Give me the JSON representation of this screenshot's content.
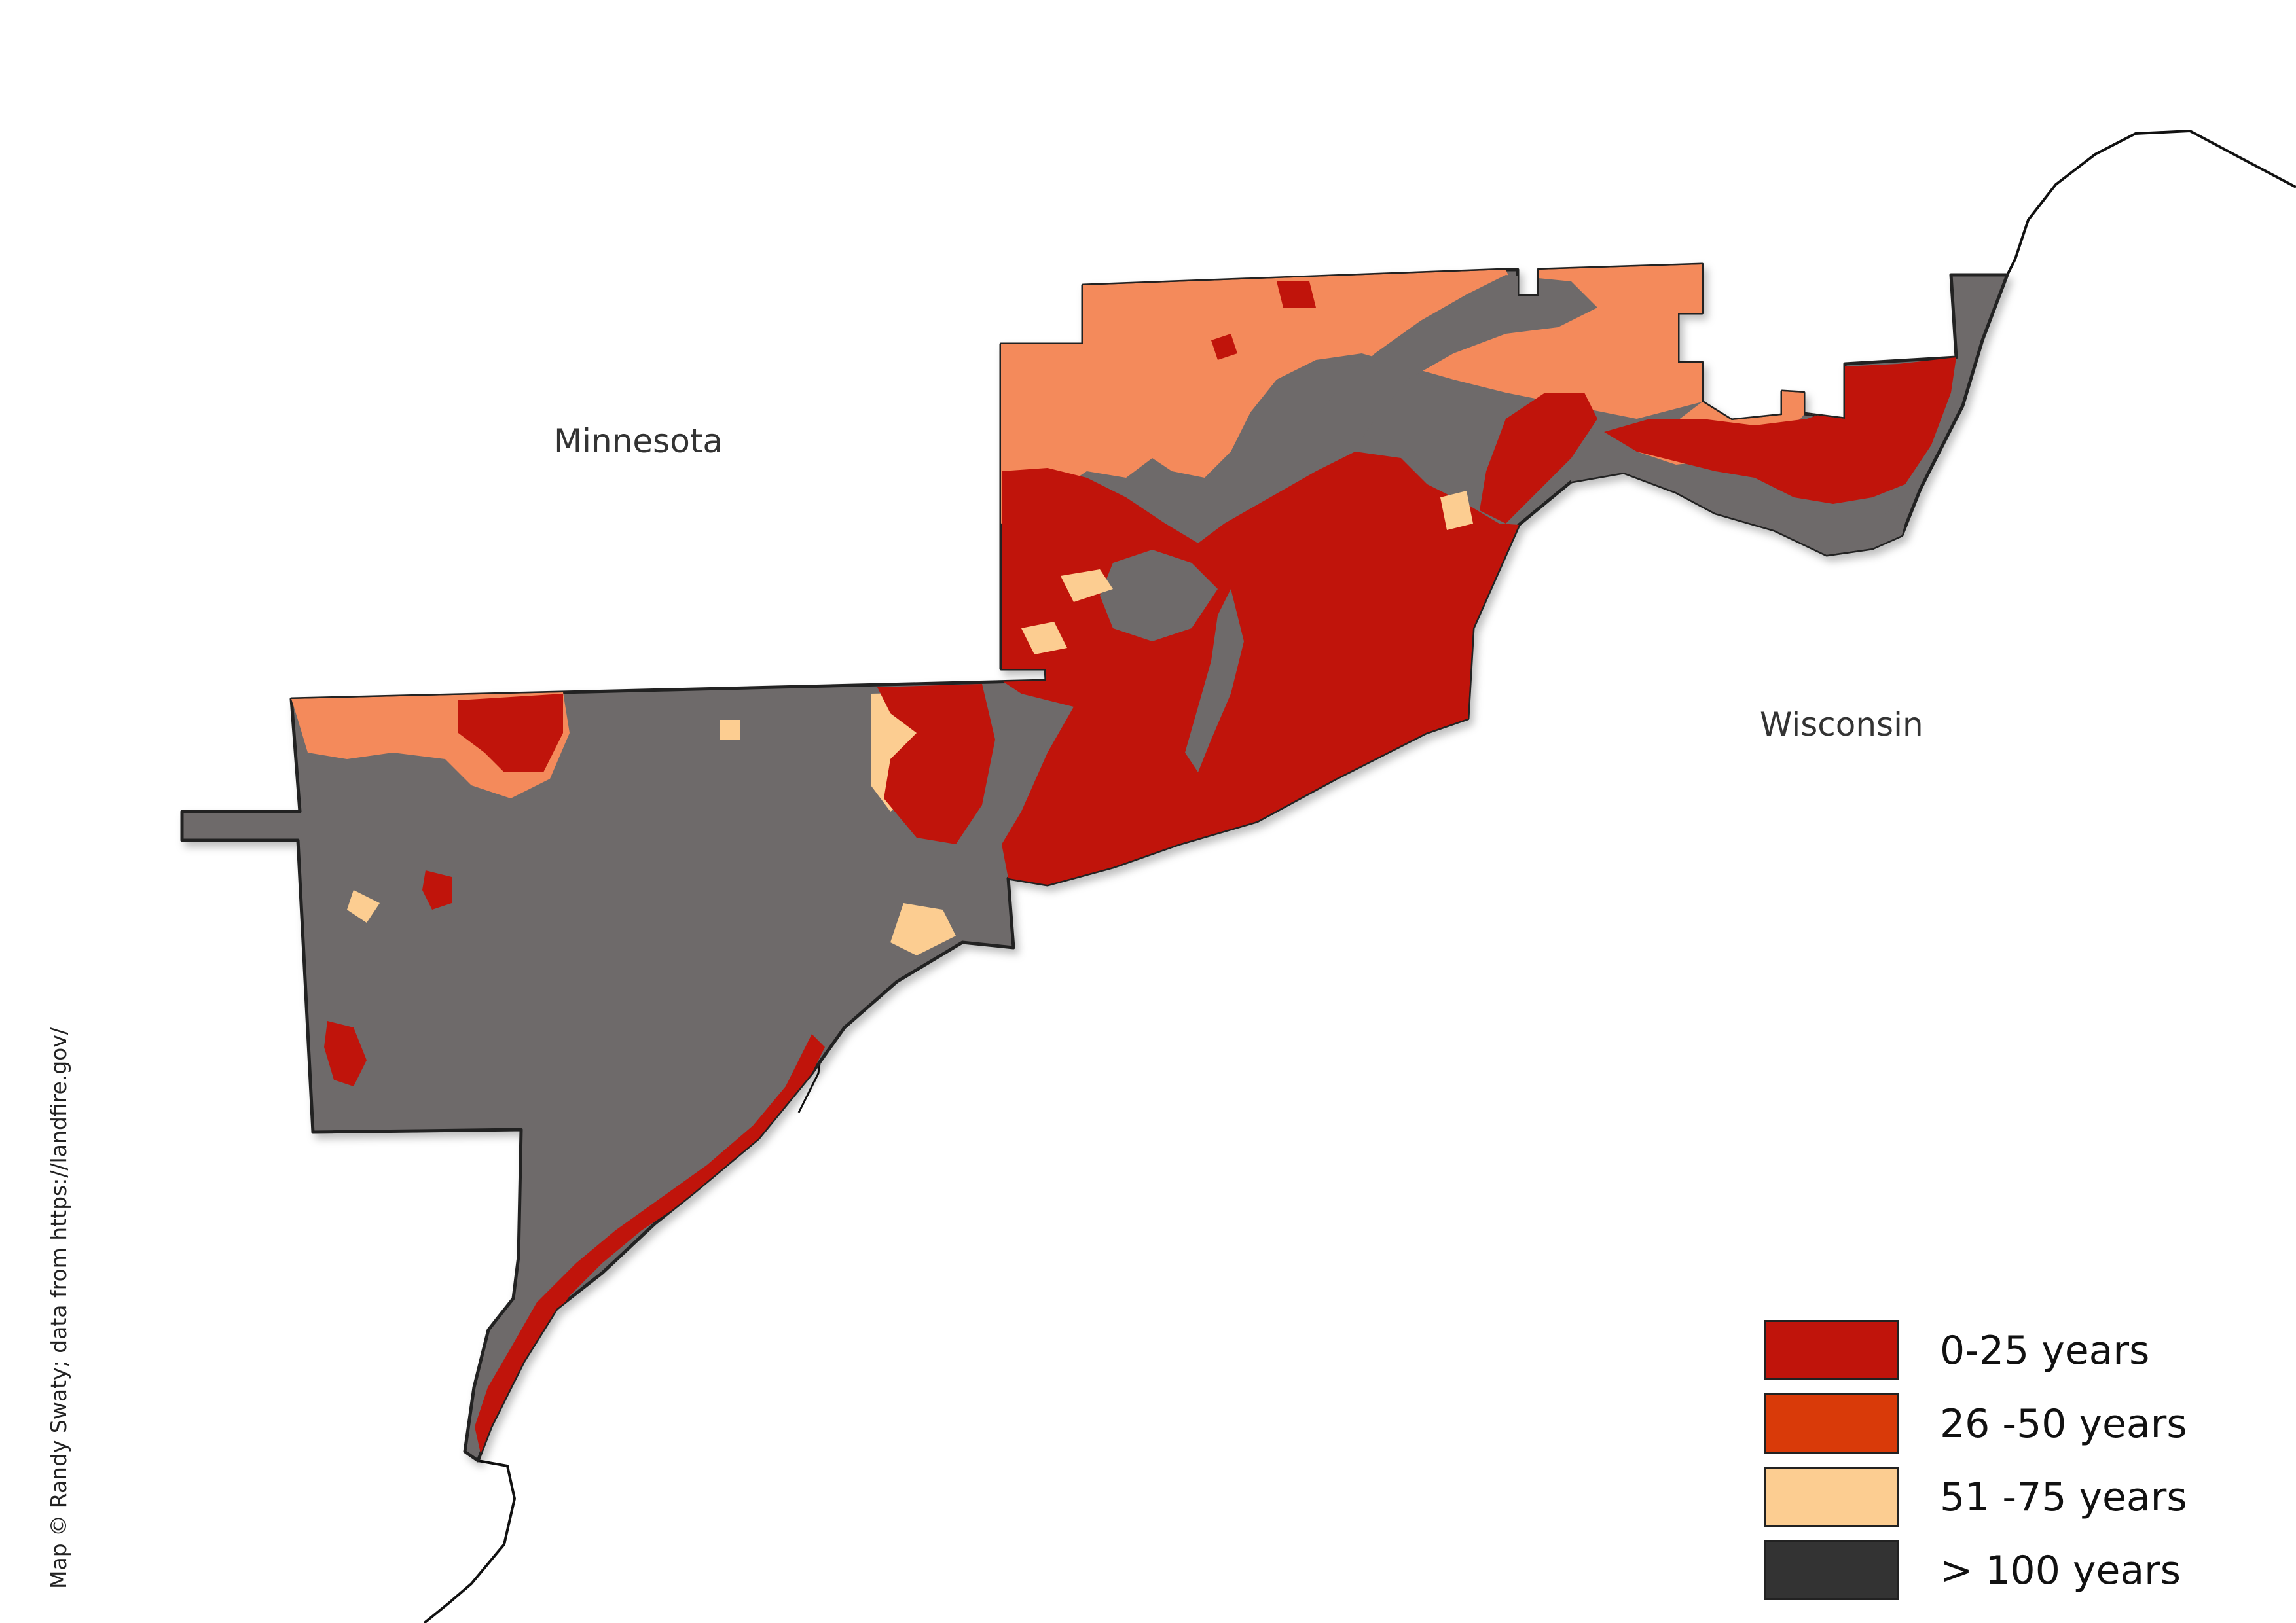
{
  "map": {
    "labels": {
      "minnesota": "Minnesota",
      "wisconsin": "Wisconsin"
    },
    "credit": "Map © Randy Swaty; data from https://landfire.gov/",
    "colors": {
      "background": "#ffffff",
      "boundary": "#222222",
      "river_line": "#111111"
    },
    "legend": [
      {
        "label": "0-25 years",
        "color": "#c0140b"
      },
      {
        "label": "26 -50 years",
        "color": "#d93a09"
      },
      {
        "label": "51 -75 years",
        "color": "#fccd91"
      },
      {
        "label": "> 100 years",
        "color": "#333333"
      }
    ],
    "map_fill_colors": {
      "over_100_years_area": "#6e6a6a",
      "light_orange_area": "#f48a5b"
    }
  }
}
